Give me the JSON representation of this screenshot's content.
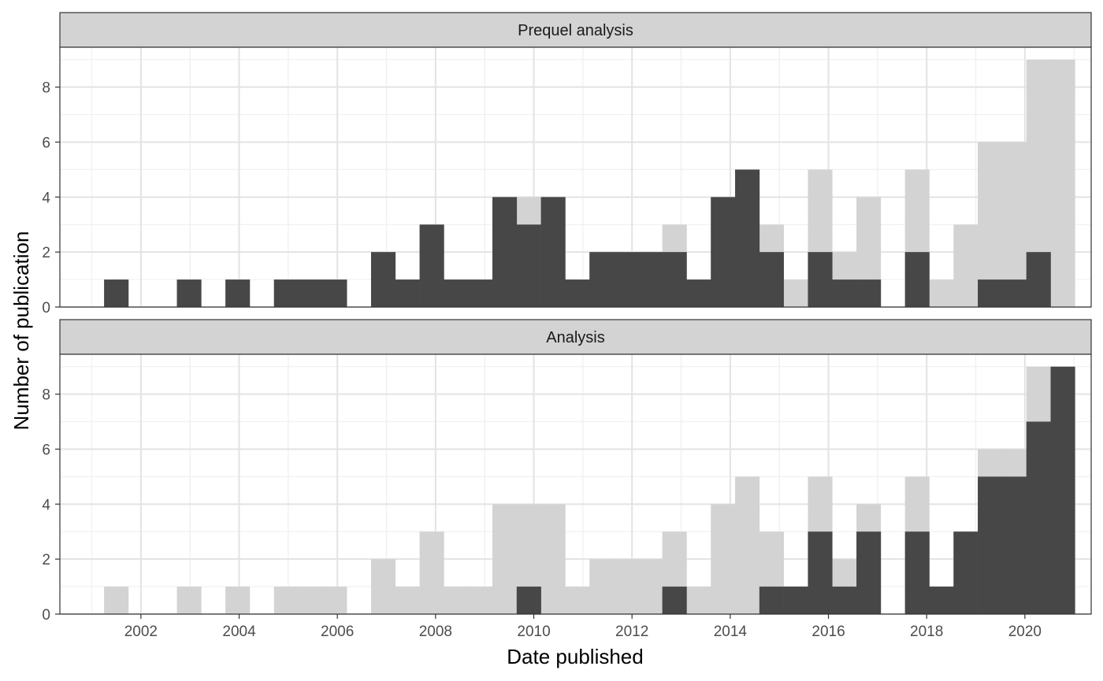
{
  "chart_data": {
    "type": "bar",
    "xlabel": "Date published",
    "ylabel": "Number of publication",
    "x_ticks": [
      2002,
      2004,
      2006,
      2008,
      2010,
      2012,
      2014,
      2016,
      2018,
      2020
    ],
    "y_ticks": [
      0,
      2,
      4,
      6,
      8
    ],
    "ylim": [
      0,
      9.45
    ],
    "xlim": [
      2000.35,
      2021.35
    ],
    "bins": {
      "start": 2001.25,
      "width": 0.4942
    },
    "grid": true,
    "total_series": {
      "name": "",
      "color": "#d3d3d3",
      "values": [
        1,
        0,
        0,
        1,
        0,
        1,
        0,
        1,
        1,
        1,
        0,
        2,
        1,
        3,
        1,
        1,
        4,
        4,
        4,
        1,
        2,
        2,
        2,
        3,
        1,
        4,
        5,
        3,
        1,
        5,
        2,
        4,
        0,
        5,
        1,
        3,
        6,
        6,
        9,
        9
      ]
    },
    "panels": [
      {
        "title": "Prequel analysis",
        "color": "#474747",
        "values": [
          1,
          0,
          0,
          1,
          0,
          1,
          0,
          1,
          1,
          1,
          0,
          2,
          1,
          3,
          1,
          1,
          4,
          3,
          4,
          1,
          2,
          2,
          2,
          2,
          1,
          4,
          5,
          2,
          0,
          2,
          1,
          1,
          0,
          2,
          0,
          0,
          1,
          1,
          2,
          0
        ]
      },
      {
        "title": "Analysis",
        "color": "#474747",
        "values": [
          0,
          0,
          0,
          0,
          0,
          0,
          0,
          0,
          0,
          0,
          0,
          0,
          0,
          0,
          0,
          0,
          0,
          1,
          0,
          0,
          0,
          0,
          0,
          1,
          0,
          0,
          0,
          1,
          1,
          3,
          1,
          3,
          0,
          3,
          1,
          3,
          5,
          5,
          7,
          9
        ]
      }
    ]
  }
}
